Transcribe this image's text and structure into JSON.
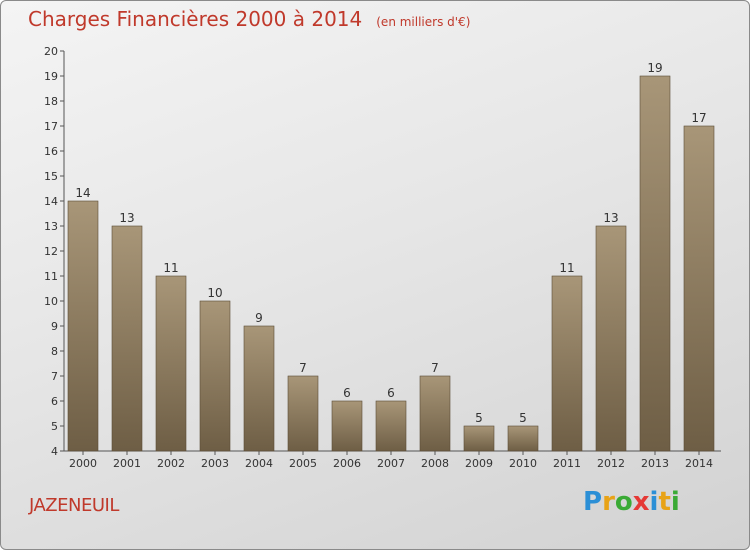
{
  "header": {
    "title": "Charges Financières 2000 à 2014",
    "subtitle": "(en milliers d'€)"
  },
  "footer": {
    "commune": "JAZENEUIL",
    "logo_letters": [
      "P",
      "r",
      "o",
      "x",
      "i",
      "t",
      "i"
    ],
    "logo_colors": [
      "#2b8fd6",
      "#e8a317",
      "#3aaa35",
      "#e53935",
      "#2b8fd6",
      "#e8a317",
      "#3aaa35"
    ]
  },
  "chart_data": {
    "type": "bar",
    "categories": [
      "2000",
      "2001",
      "2002",
      "2003",
      "2004",
      "2005",
      "2006",
      "2007",
      "2008",
      "2009",
      "2010",
      "2011",
      "2012",
      "2013",
      "2014"
    ],
    "values": [
      14,
      13,
      11,
      10,
      9,
      7,
      6,
      6,
      7,
      5,
      5,
      11,
      13,
      19,
      17
    ],
    "yticks": [
      "4",
      "5",
      "6",
      "7",
      "8",
      "9",
      "10",
      "11",
      "12",
      "13",
      "14",
      "15",
      "16",
      "17",
      "18",
      "19",
      "20"
    ],
    "ylim": [
      4,
      20
    ],
    "grid": false,
    "bar_color": "#8f7d62"
  }
}
